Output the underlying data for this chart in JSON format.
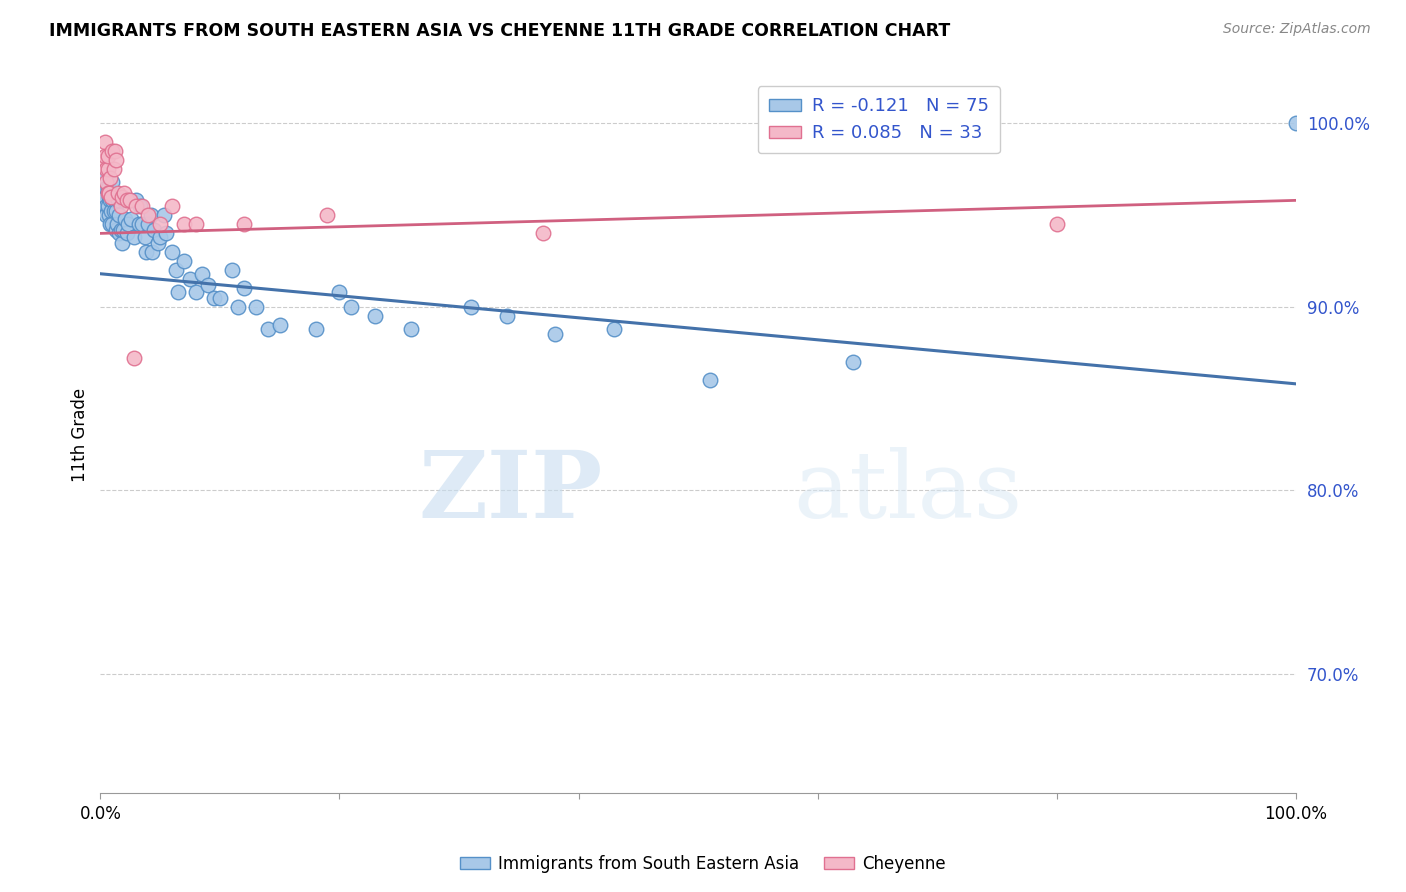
{
  "title": "IMMIGRANTS FROM SOUTH EASTERN ASIA VS CHEYENNE 11TH GRADE CORRELATION CHART",
  "source": "Source: ZipAtlas.com",
  "ylabel": "11th Grade",
  "blue_color": "#a8c8e8",
  "blue_edge_color": "#5590c8",
  "blue_line_color": "#4472aa",
  "pink_color": "#f4b8c8",
  "pink_edge_color": "#e07090",
  "pink_line_color": "#d06080",
  "legend_text_color": "#3355cc",
  "ytick_color": "#3355cc",
  "blue_R": -0.121,
  "blue_N": 75,
  "pink_R": 0.085,
  "pink_N": 33,
  "watermark": "ZIPatlas",
  "xlim": [
    0.0,
    1.0
  ],
  "ylim": [
    0.635,
    1.025
  ],
  "ytick_vals": [
    0.7,
    0.8,
    0.9,
    1.0
  ],
  "ytick_labels": [
    "70.0%",
    "80.0%",
    "90.0%",
    "100.0%"
  ],
  "xtick_vals": [
    0.0,
    0.2,
    0.4,
    0.6,
    0.8,
    1.0
  ],
  "xtick_labels": [
    "0.0%",
    "",
    "",
    "",
    "",
    "100.0%"
  ],
  "blue_line_x": [
    0.0,
    1.0
  ],
  "blue_line_y": [
    0.918,
    0.858
  ],
  "pink_line_x": [
    0.0,
    1.0
  ],
  "pink_line_y": [
    0.94,
    0.958
  ],
  "blue_x": [
    0.003,
    0.004,
    0.005,
    0.005,
    0.005,
    0.006,
    0.006,
    0.007,
    0.007,
    0.008,
    0.008,
    0.009,
    0.01,
    0.01,
    0.01,
    0.011,
    0.012,
    0.013,
    0.013,
    0.014,
    0.015,
    0.016,
    0.016,
    0.017,
    0.018,
    0.019,
    0.02,
    0.021,
    0.022,
    0.023,
    0.025,
    0.026,
    0.028,
    0.03,
    0.032,
    0.033,
    0.035,
    0.037,
    0.038,
    0.04,
    0.042,
    0.043,
    0.045,
    0.048,
    0.05,
    0.053,
    0.055,
    0.06,
    0.063,
    0.065,
    0.07,
    0.075,
    0.08,
    0.085,
    0.09,
    0.095,
    0.1,
    0.11,
    0.115,
    0.12,
    0.13,
    0.14,
    0.15,
    0.18,
    0.2,
    0.21,
    0.23,
    0.26,
    0.31,
    0.34,
    0.38,
    0.43,
    0.51,
    0.63,
    1.0
  ],
  "blue_y": [
    0.97,
    0.96,
    0.965,
    0.955,
    0.95,
    0.965,
    0.955,
    0.96,
    0.95,
    0.958,
    0.945,
    0.952,
    0.968,
    0.958,
    0.945,
    0.952,
    0.958,
    0.952,
    0.942,
    0.945,
    0.958,
    0.95,
    0.94,
    0.942,
    0.935,
    0.942,
    0.958,
    0.948,
    0.94,
    0.945,
    0.958,
    0.948,
    0.938,
    0.958,
    0.945,
    0.955,
    0.945,
    0.938,
    0.93,
    0.945,
    0.95,
    0.93,
    0.942,
    0.935,
    0.938,
    0.95,
    0.94,
    0.93,
    0.92,
    0.908,
    0.925,
    0.915,
    0.908,
    0.918,
    0.912,
    0.905,
    0.905,
    0.92,
    0.9,
    0.91,
    0.9,
    0.888,
    0.89,
    0.888,
    0.908,
    0.9,
    0.895,
    0.888,
    0.9,
    0.895,
    0.885,
    0.888,
    0.86,
    0.87,
    1.0
  ],
  "pink_x": [
    0.003,
    0.004,
    0.004,
    0.005,
    0.005,
    0.006,
    0.006,
    0.006,
    0.007,
    0.008,
    0.009,
    0.01,
    0.011,
    0.012,
    0.013,
    0.015,
    0.017,
    0.018,
    0.02,
    0.022,
    0.025,
    0.028,
    0.03,
    0.035,
    0.04,
    0.05,
    0.06,
    0.07,
    0.08,
    0.12,
    0.19,
    0.37,
    0.8
  ],
  "pink_y": [
    0.98,
    0.99,
    0.982,
    0.975,
    0.968,
    0.975,
    0.962,
    0.982,
    0.962,
    0.97,
    0.96,
    0.985,
    0.975,
    0.985,
    0.98,
    0.962,
    0.955,
    0.96,
    0.962,
    0.958,
    0.958,
    0.872,
    0.955,
    0.955,
    0.95,
    0.945,
    0.955,
    0.945,
    0.945,
    0.945,
    0.95,
    0.94,
    0.945
  ]
}
